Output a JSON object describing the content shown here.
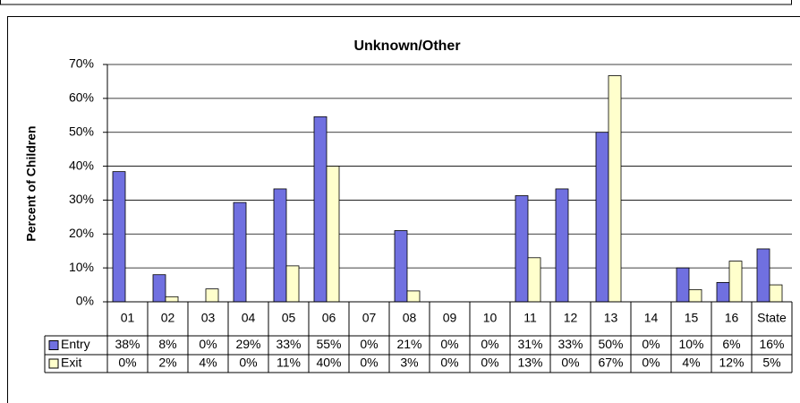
{
  "chart_data": {
    "type": "bar",
    "title": "Unknown/Other",
    "y_label": "Percent of Children",
    "categories": [
      "01",
      "02",
      "03",
      "04",
      "05",
      "06",
      "07",
      "08",
      "09",
      "10",
      "11",
      "12",
      "13",
      "14",
      "15",
      "16",
      "State"
    ],
    "series": [
      {
        "name": "Entry",
        "color": "#7070e0",
        "values": [
          38.4,
          8,
          0,
          29.3,
          33.3,
          54.6,
          0,
          21,
          0,
          0,
          31.3,
          33.3,
          50,
          0,
          10,
          5.7,
          15.6
        ],
        "value_labels": [
          "38%",
          "8%",
          "0%",
          "29%",
          "33%",
          "55%",
          "0%",
          "21%",
          "0%",
          "0%",
          "31%",
          "33%",
          "50%",
          "0%",
          "10%",
          "6%",
          "16%"
        ]
      },
      {
        "name": "Exit",
        "color": "#ffffcc",
        "values": [
          0,
          1.5,
          3.8,
          0,
          10.6,
          40,
          0,
          3.2,
          0,
          0,
          13,
          0,
          66.7,
          0,
          3.6,
          12,
          5
        ],
        "value_labels": [
          "0%",
          "2%",
          "4%",
          "0%",
          "11%",
          "40%",
          "0%",
          "3%",
          "0%",
          "0%",
          "13%",
          "0%",
          "67%",
          "0%",
          "4%",
          "12%",
          "5%"
        ]
      }
    ],
    "ylim": [
      0,
      70
    ],
    "yticks": [
      {
        "value": 0,
        "label": "0%"
      },
      {
        "value": 10,
        "label": "10%"
      },
      {
        "value": 20,
        "label": "20%"
      },
      {
        "value": 30,
        "label": "30%"
      },
      {
        "value": 40,
        "label": "40%"
      },
      {
        "value": 50,
        "label": "50%"
      },
      {
        "value": 60,
        "label": "60%"
      },
      {
        "value": 70,
        "label": "70%"
      }
    ],
    "grid": true
  }
}
